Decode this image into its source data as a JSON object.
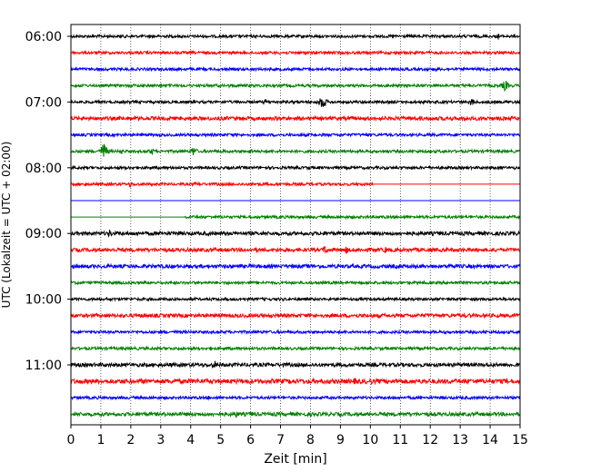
{
  "chart_data": {
    "type": "line",
    "title": "",
    "xlabel": "Zeit  [min]",
    "ylabel": "UTC (Lokalzeit = UTC + 02:00)",
    "xlim": [
      0,
      15
    ],
    "x_ticks": [
      0,
      1,
      2,
      3,
      4,
      5,
      6,
      7,
      8,
      9,
      10,
      11,
      12,
      13,
      14,
      15
    ],
    "x_tick_labels": [
      "0",
      "1",
      "2",
      "3",
      "4",
      "5",
      "6",
      "7",
      "8",
      "9",
      "10",
      "11",
      "12",
      "13",
      "14",
      "15"
    ],
    "y_tick_labels": [
      "06:00",
      "07:00",
      "08:00",
      "09:00",
      "10:00",
      "11:00"
    ],
    "y_tick_trace_index": [
      0,
      4,
      8,
      12,
      16,
      20
    ],
    "grid": {
      "vertical": true,
      "style": "dotted"
    },
    "colors": [
      "#000000",
      "#ff0000",
      "#0000ff",
      "#008000"
    ],
    "traces": [
      {
        "start": "06:00",
        "color": "#000000",
        "amp": 3,
        "events": [
          [
            14.3,
            8
          ],
          [
            3.0,
            4
          ]
        ]
      },
      {
        "start": "06:15",
        "color": "#ff0000",
        "amp": 3,
        "events": [
          [
            9.0,
            5
          ],
          [
            8.7,
            4
          ]
        ]
      },
      {
        "start": "06:30",
        "color": "#0000ff",
        "amp": 3,
        "events": [
          [
            12.2,
            6
          ]
        ]
      },
      {
        "start": "06:45",
        "color": "#008000",
        "amp": 3,
        "events": [
          [
            14.5,
            14
          ],
          [
            5.3,
            5
          ]
        ]
      },
      {
        "start": "07:00",
        "color": "#000000",
        "amp": 3,
        "events": [
          [
            8.4,
            18
          ],
          [
            13.4,
            10
          ],
          [
            6.5,
            7
          ]
        ]
      },
      {
        "start": "07:15",
        "color": "#ff0000",
        "amp": 4,
        "events": [
          [
            13.2,
            8
          ],
          [
            12.3,
            5
          ],
          [
            8.5,
            5
          ]
        ]
      },
      {
        "start": "07:30",
        "color": "#0000ff",
        "amp": 3,
        "events": [
          [
            6.8,
            4
          ]
        ]
      },
      {
        "start": "07:45",
        "color": "#008000",
        "amp": 3,
        "events": [
          [
            1.1,
            22
          ],
          [
            4.1,
            12
          ],
          [
            2.7,
            9
          ],
          [
            1.7,
            7
          ],
          [
            6.0,
            8
          ],
          [
            5.1,
            6
          ]
        ]
      },
      {
        "start": "08:00",
        "color": "#000000",
        "amp": 3,
        "events": [
          [
            1.9,
            5
          ],
          [
            7.5,
            5
          ],
          [
            10.4,
            4
          ],
          [
            12.3,
            4
          ]
        ]
      },
      {
        "start": "08:15",
        "color": "#ff0000",
        "amp": 3,
        "end": 10.1,
        "events": [
          [
            2.0,
            7
          ],
          [
            0.5,
            6
          ],
          [
            4.2,
            6
          ]
        ]
      },
      {
        "start": "08:30",
        "color": "#0000ff",
        "amp": 0,
        "events": []
      },
      {
        "start": "08:45",
        "color": "#008000",
        "amp": 3,
        "begin": 3.8,
        "events": [
          [
            5.0,
            4
          ],
          [
            8.0,
            4
          ]
        ]
      },
      {
        "start": "09:00",
        "color": "#000000",
        "amp": 4,
        "events": [
          [
            1.3,
            10
          ],
          [
            3.0,
            7
          ],
          [
            8.5,
            6
          ]
        ]
      },
      {
        "start": "09:15",
        "color": "#ff0000",
        "amp": 4,
        "events": [
          [
            8.5,
            12
          ],
          [
            9.2,
            9
          ],
          [
            10.5,
            8
          ],
          [
            6.2,
            6
          ],
          [
            12.0,
            6
          ]
        ]
      },
      {
        "start": "09:30",
        "color": "#0000ff",
        "amp": 4,
        "events": [
          [
            12.7,
            10
          ],
          [
            3.0,
            5
          ],
          [
            6.0,
            6
          ]
        ]
      },
      {
        "start": "09:45",
        "color": "#008000",
        "amp": 3,
        "events": [
          [
            2.6,
            4
          ],
          [
            9.3,
            4
          ]
        ]
      },
      {
        "start": "10:00",
        "color": "#000000",
        "amp": 3,
        "events": [
          [
            1.2,
            4
          ],
          [
            13.7,
            4
          ]
        ]
      },
      {
        "start": "10:15",
        "color": "#ff0000",
        "amp": 4,
        "events": [
          [
            8.4,
            6
          ],
          [
            12.4,
            5
          ]
        ]
      },
      {
        "start": "10:30",
        "color": "#0000ff",
        "amp": 3,
        "events": [
          [
            5.2,
            4
          ]
        ]
      },
      {
        "start": "10:45",
        "color": "#008000",
        "amp": 3,
        "events": [
          [
            4.7,
            6
          ],
          [
            3.2,
            5
          ],
          [
            10.6,
            4
          ]
        ]
      },
      {
        "start": "11:00",
        "color": "#000000",
        "amp": 4,
        "events": [
          [
            4.8,
            10
          ],
          [
            1.0,
            5
          ],
          [
            6.0,
            5
          ],
          [
            12.9,
            5
          ]
        ]
      },
      {
        "start": "11:15",
        "color": "#ff0000",
        "amp": 5,
        "events": [
          [
            9.5,
            9
          ],
          [
            10.0,
            8
          ],
          [
            7.6,
            7
          ],
          [
            8.6,
            6
          ],
          [
            13.5,
            6
          ]
        ]
      },
      {
        "start": "11:30",
        "color": "#0000ff",
        "amp": 3,
        "events": [
          [
            4.6,
            5
          ],
          [
            12.5,
            4
          ]
        ]
      },
      {
        "start": "11:45",
        "color": "#008000",
        "amp": 4,
        "events": [
          [
            5.5,
            10
          ],
          [
            6.0,
            7
          ],
          [
            12.0,
            5
          ]
        ]
      }
    ]
  }
}
